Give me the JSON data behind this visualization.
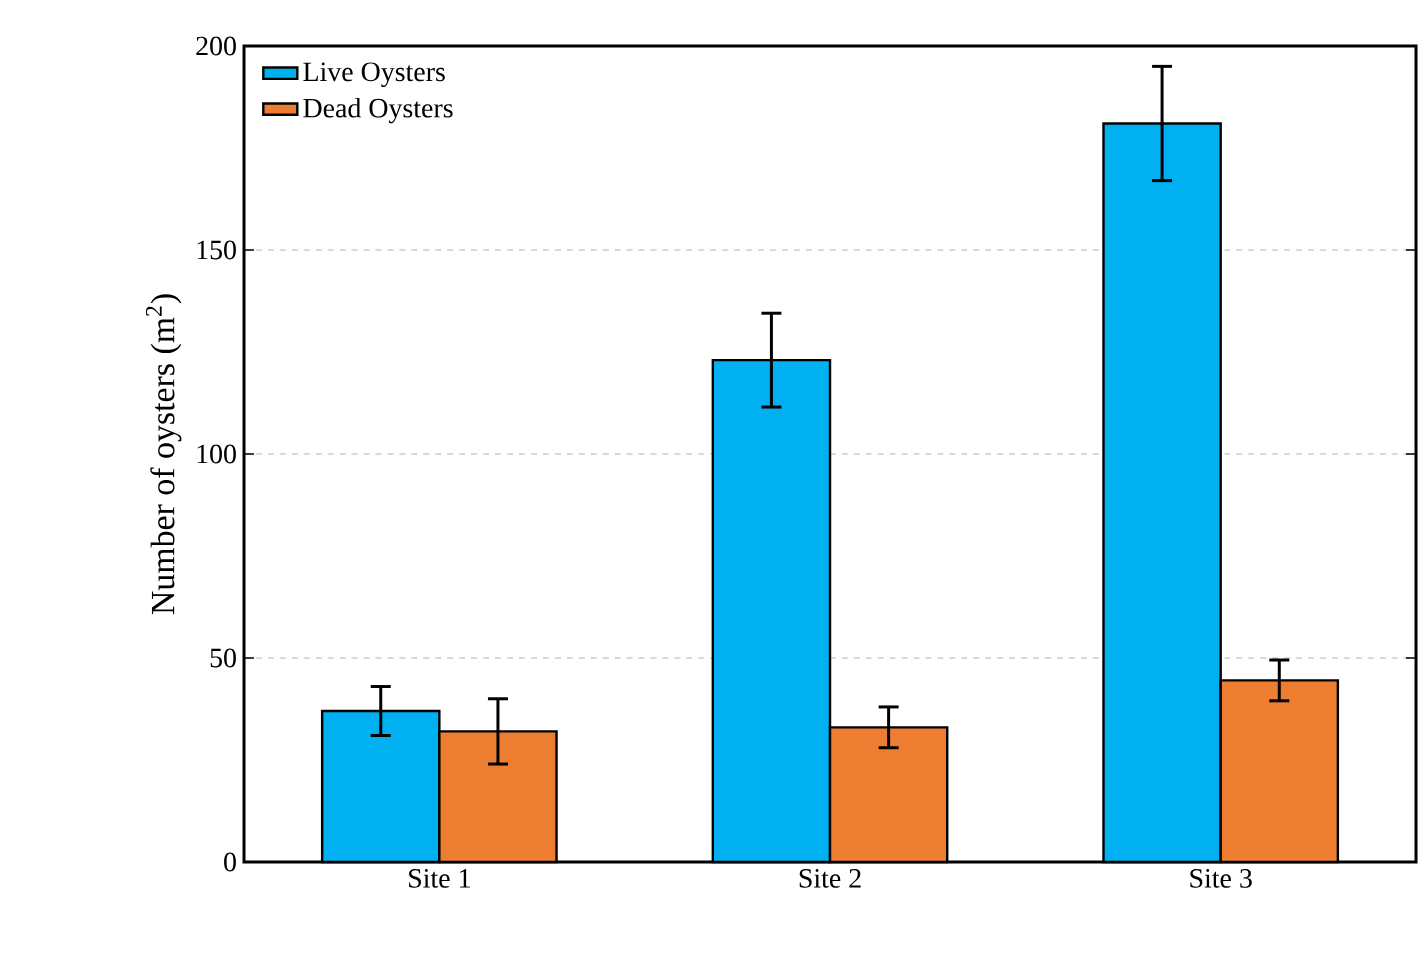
{
  "chart_data": {
    "type": "bar",
    "ylabel": "Number of oysters (m$^{2}$)",
    "categories": [
      "Site 1",
      "Site 2",
      "Site 3"
    ],
    "series": [
      {
        "name": "Live Oysters",
        "color": "#00b0f0",
        "values": [
          37,
          123,
          181
        ],
        "errors": [
          6,
          11.5,
          14
        ]
      },
      {
        "name": "Dead Oysters",
        "color": "#ed7d31",
        "values": [
          32,
          33,
          44.5
        ],
        "errors": [
          8,
          5,
          5
        ]
      }
    ],
    "ylim": [
      0,
      200
    ],
    "yticks": [
      0,
      50,
      100,
      150,
      200
    ],
    "grid": "y",
    "legend": "top left"
  }
}
